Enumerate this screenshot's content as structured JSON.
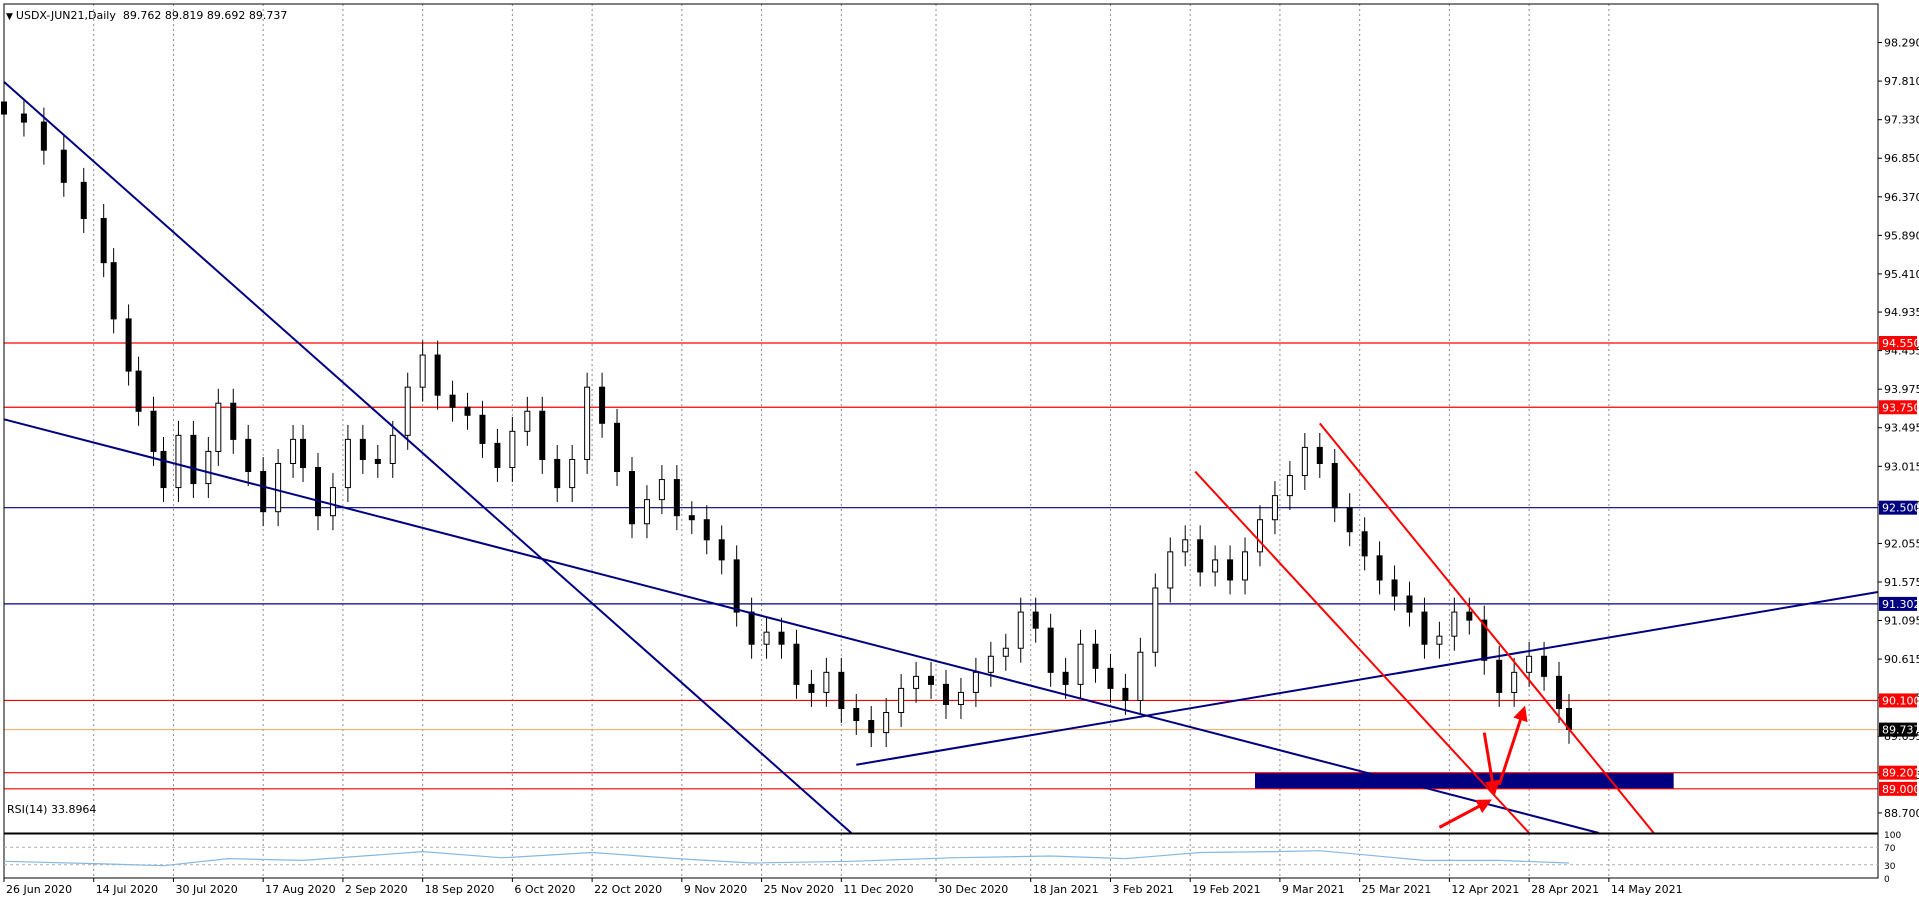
{
  "chart_data": {
    "type": "candlestick",
    "symbol": "USDX-JUN21",
    "timeframe": "Daily",
    "ohlc_header": [
      "89.762",
      "89.819",
      "89.692",
      "89.737"
    ],
    "ylim": [
      88.45,
      98.77
    ],
    "x_range_days": [
      0,
      376
    ],
    "y_ticks": [
      "98.290",
      "97.810",
      "97.330",
      "96.850",
      "96.370",
      "95.890",
      "95.410",
      "94.935",
      "94.455",
      "93.975",
      "93.495",
      "93.015",
      "92.535",
      "92.055",
      "91.575",
      "91.095",
      "90.615",
      "90.135",
      "89.655",
      "89.175",
      "88.700"
    ],
    "x_ticks": [
      {
        "label": "26 Jun 2020",
        "d": 0
      },
      {
        "label": "14 Jul 2020",
        "d": 18
      },
      {
        "label": "30 Jul 2020",
        "d": 34
      },
      {
        "label": "17 Aug 2020",
        "d": 52
      },
      {
        "label": "2 Sep 2020",
        "d": 68
      },
      {
        "label": "18 Sep 2020",
        "d": 84
      },
      {
        "label": "6 Oct 2020",
        "d": 102
      },
      {
        "label": "22 Oct 2020",
        "d": 118
      },
      {
        "label": "9 Nov 2020",
        "d": 136
      },
      {
        "label": "25 Nov 2020",
        "d": 152
      },
      {
        "label": "11 Dec 2020",
        "d": 168
      },
      {
        "label": "30 Dec 2020",
        "d": 187
      },
      {
        "label": "18 Jan 2021",
        "d": 206
      },
      {
        "label": "3 Feb 2021",
        "d": 222
      },
      {
        "label": "19 Feb 2021",
        "d": 238
      },
      {
        "label": "9 Mar 2021",
        "d": 256
      },
      {
        "label": "25 Mar 2021",
        "d": 272
      },
      {
        "label": "12 Apr 2021",
        "d": 290
      },
      {
        "label": "28 Apr 2021",
        "d": 306
      },
      {
        "label": "14 May 2021",
        "d": 322
      }
    ],
    "closes": [
      {
        "d": 0,
        "c": 97.4
      },
      {
        "d": 4,
        "c": 97.3
      },
      {
        "d": 8,
        "c": 96.95
      },
      {
        "d": 12,
        "c": 96.55
      },
      {
        "d": 16,
        "c": 96.1
      },
      {
        "d": 20,
        "c": 95.55
      },
      {
        "d": 22,
        "c": 94.85
      },
      {
        "d": 25,
        "c": 94.2
      },
      {
        "d": 27,
        "c": 93.7
      },
      {
        "d": 30,
        "c": 93.2
      },
      {
        "d": 32,
        "c": 92.75
      },
      {
        "d": 35,
        "c": 93.4
      },
      {
        "d": 38,
        "c": 92.8
      },
      {
        "d": 41,
        "c": 93.2
      },
      {
        "d": 43,
        "c": 93.8
      },
      {
        "d": 46,
        "c": 93.35
      },
      {
        "d": 49,
        "c": 92.95
      },
      {
        "d": 52,
        "c": 92.45
      },
      {
        "d": 55,
        "c": 93.05
      },
      {
        "d": 58,
        "c": 93.35
      },
      {
        "d": 60,
        "c": 93.0
      },
      {
        "d": 63,
        "c": 92.4
      },
      {
        "d": 66,
        "c": 92.75
      },
      {
        "d": 69,
        "c": 93.35
      },
      {
        "d": 72,
        "c": 93.1
      },
      {
        "d": 75,
        "c": 93.05
      },
      {
        "d": 78,
        "c": 93.4
      },
      {
        "d": 81,
        "c": 94.0
      },
      {
        "d": 84,
        "c": 94.4
      },
      {
        "d": 87,
        "c": 93.9
      },
      {
        "d": 90,
        "c": 93.75
      },
      {
        "d": 93,
        "c": 93.65
      },
      {
        "d": 96,
        "c": 93.3
      },
      {
        "d": 99,
        "c": 93.0
      },
      {
        "d": 102,
        "c": 93.45
      },
      {
        "d": 105,
        "c": 93.7
      },
      {
        "d": 108,
        "c": 93.1
      },
      {
        "d": 111,
        "c": 92.75
      },
      {
        "d": 114,
        "c": 93.1
      },
      {
        "d": 117,
        "c": 94.0
      },
      {
        "d": 120,
        "c": 93.55
      },
      {
        "d": 123,
        "c": 92.95
      },
      {
        "d": 126,
        "c": 92.3
      },
      {
        "d": 129,
        "c": 92.6
      },
      {
        "d": 132,
        "c": 92.85
      },
      {
        "d": 135,
        "c": 92.4
      },
      {
        "d": 138,
        "c": 92.35
      },
      {
        "d": 141,
        "c": 92.1
      },
      {
        "d": 144,
        "c": 91.85
      },
      {
        "d": 147,
        "c": 91.2
      },
      {
        "d": 150,
        "c": 90.8
      },
      {
        "d": 153,
        "c": 90.95
      },
      {
        "d": 156,
        "c": 90.8
      },
      {
        "d": 159,
        "c": 90.3
      },
      {
        "d": 162,
        "c": 90.2
      },
      {
        "d": 165,
        "c": 90.45
      },
      {
        "d": 168,
        "c": 90.0
      },
      {
        "d": 171,
        "c": 89.85
      },
      {
        "d": 174,
        "c": 89.7
      },
      {
        "d": 177,
        "c": 89.95
      },
      {
        "d": 180,
        "c": 90.25
      },
      {
        "d": 183,
        "c": 90.4
      },
      {
        "d": 186,
        "c": 90.3
      },
      {
        "d": 189,
        "c": 90.05
      },
      {
        "d": 192,
        "c": 90.2
      },
      {
        "d": 195,
        "c": 90.45
      },
      {
        "d": 198,
        "c": 90.65
      },
      {
        "d": 201,
        "c": 90.75
      },
      {
        "d": 204,
        "c": 91.2
      },
      {
        "d": 207,
        "c": 91.0
      },
      {
        "d": 210,
        "c": 90.45
      },
      {
        "d": 213,
        "c": 90.3
      },
      {
        "d": 216,
        "c": 90.8
      },
      {
        "d": 219,
        "c": 90.5
      },
      {
        "d": 222,
        "c": 90.25
      },
      {
        "d": 225,
        "c": 90.1
      },
      {
        "d": 228,
        "c": 90.7
      },
      {
        "d": 231,
        "c": 91.5
      },
      {
        "d": 234,
        "c": 91.95
      },
      {
        "d": 237,
        "c": 92.1
      },
      {
        "d": 240,
        "c": 91.7
      },
      {
        "d": 243,
        "c": 91.85
      },
      {
        "d": 246,
        "c": 91.6
      },
      {
        "d": 249,
        "c": 91.95
      },
      {
        "d": 252,
        "c": 92.35
      },
      {
        "d": 255,
        "c": 92.65
      },
      {
        "d": 258,
        "c": 92.9
      },
      {
        "d": 261,
        "c": 93.25
      },
      {
        "d": 264,
        "c": 93.05
      },
      {
        "d": 267,
        "c": 92.5
      },
      {
        "d": 270,
        "c": 92.2
      },
      {
        "d": 273,
        "c": 91.9
      },
      {
        "d": 276,
        "c": 91.6
      },
      {
        "d": 279,
        "c": 91.4
      },
      {
        "d": 282,
        "c": 91.2
      },
      {
        "d": 285,
        "c": 90.8
      },
      {
        "d": 288,
        "c": 90.9
      },
      {
        "d": 291,
        "c": 91.2
      },
      {
        "d": 294,
        "c": 91.1
      },
      {
        "d": 297,
        "c": 90.6
      },
      {
        "d": 300,
        "c": 90.2
      },
      {
        "d": 303,
        "c": 90.45
      },
      {
        "d": 306,
        "c": 90.65
      },
      {
        "d": 309,
        "c": 90.4
      },
      {
        "d": 312,
        "c": 90.0
      },
      {
        "d": 314,
        "c": 89.74
      }
    ],
    "price_labels": [
      {
        "value": 94.55,
        "text": "94.550",
        "bg": "#ff0000"
      },
      {
        "value": 93.75,
        "text": "93.750",
        "bg": "#ff0000"
      },
      {
        "value": 92.5,
        "text": "92.500",
        "bg": "#000080"
      },
      {
        "value": 91.302,
        "text": "91.302",
        "bg": "#000080"
      },
      {
        "value": 90.1,
        "text": "90.100",
        "bg": "#ff0000"
      },
      {
        "value": 89.737,
        "text": "89.737",
        "bg": "#000000"
      },
      {
        "value": 89.201,
        "text": "89.201",
        "bg": "#ff0000"
      },
      {
        "value": 89.0,
        "text": "89.000",
        "bg": "#ff0000"
      }
    ],
    "support_zone": {
      "d1": 251,
      "d2": 335,
      "v1": 89.0,
      "v2": 89.201
    },
    "trendlines": [
      {
        "color": "#000080",
        "p1": [
          0,
          97.8
        ],
        "p2": [
          170,
          88.45
        ]
      },
      {
        "color": "#000080",
        "p1": [
          0,
          93.6
        ],
        "p2": [
          320,
          88.45
        ]
      },
      {
        "color": "#000080",
        "p1": [
          171,
          89.3
        ],
        "p2": [
          376,
          91.45
        ]
      },
      {
        "color": "#ff0000",
        "p1": [
          264,
          93.55
        ],
        "p2": [
          331,
          88.45
        ]
      },
      {
        "color": "#ff0000",
        "p1": [
          239,
          92.95
        ],
        "p2": [
          306,
          88.45
        ]
      }
    ],
    "arrows": [
      {
        "p1": [
          288,
          88.52
        ],
        "p2": [
          298,
          88.85
        ]
      },
      {
        "p1": [
          297,
          89.7
        ],
        "p2": [
          299,
          88.95
        ]
      },
      {
        "p1": [
          300,
          89.05
        ],
        "p2": [
          305,
          90.0
        ]
      }
    ],
    "rsi": {
      "label": "RSI(14) 33.8964",
      "ylim": [
        0,
        100
      ],
      "levels": [
        {
          "value": 70,
          "label": "70"
        },
        {
          "value": 30,
          "label": "30"
        },
        {
          "value": 100,
          "label": "100"
        },
        {
          "value": 0,
          "label": "0"
        }
      ],
      "points": [
        {
          "d": 0,
          "v": 38
        },
        {
          "d": 20,
          "v": 32
        },
        {
          "d": 32,
          "v": 28
        },
        {
          "d": 45,
          "v": 44
        },
        {
          "d": 60,
          "v": 40
        },
        {
          "d": 84,
          "v": 60
        },
        {
          "d": 100,
          "v": 46
        },
        {
          "d": 118,
          "v": 58
        },
        {
          "d": 135,
          "v": 44
        },
        {
          "d": 150,
          "v": 34
        },
        {
          "d": 170,
          "v": 38
        },
        {
          "d": 190,
          "v": 46
        },
        {
          "d": 210,
          "v": 50
        },
        {
          "d": 225,
          "v": 44
        },
        {
          "d": 240,
          "v": 58
        },
        {
          "d": 255,
          "v": 60
        },
        {
          "d": 264,
          "v": 62
        },
        {
          "d": 285,
          "v": 40
        },
        {
          "d": 300,
          "v": 40
        },
        {
          "d": 314,
          "v": 34
        }
      ]
    }
  }
}
